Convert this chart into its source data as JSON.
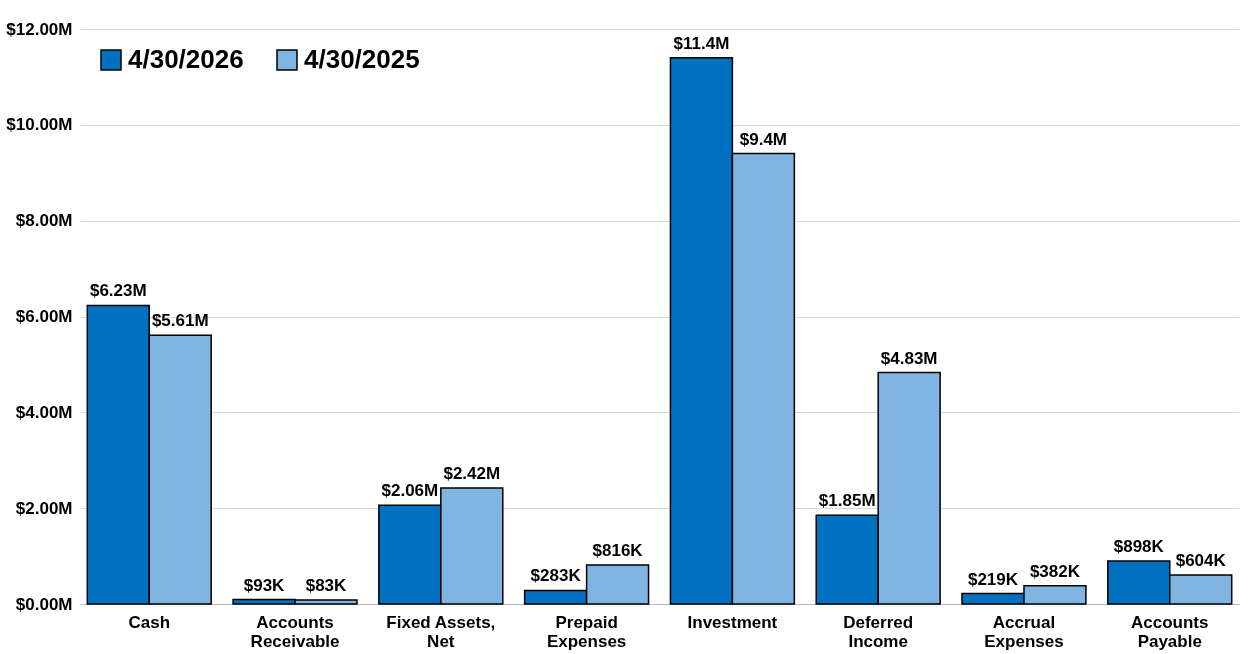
{
  "chart_data": {
    "type": "bar",
    "categories": [
      "Cash",
      "Accounts Receivable",
      "Fixed Assets, Net",
      "Prepaid Expenses",
      "Investment",
      "Deferred Income",
      "Accrual Expenses",
      "Accounts Payable"
    ],
    "series": [
      {
        "name": "4/30/2026",
        "color": "#0070c0",
        "values": [
          6230000,
          93000,
          2060000,
          283000,
          11400000,
          1850000,
          219000,
          898000
        ],
        "value_labels": [
          "$6.23M",
          "$93K",
          "$2.06M",
          "$283K",
          "$11.4M",
          "$1.85M",
          "$219K",
          "$898K"
        ]
      },
      {
        "name": "4/30/2025",
        "color": "#7fb5e0",
        "values": [
          5610000,
          83000,
          2420000,
          816000,
          9400000,
          4830000,
          382000,
          604000
        ],
        "value_labels": [
          "$5.61M",
          "$83K",
          "$2.42M",
          "$816K",
          "$9.4M",
          "$4.83M",
          "$382K",
          "$604K"
        ]
      }
    ],
    "ylim": [
      0,
      12000000
    ],
    "yticks": [
      {
        "value": 0,
        "label": "$0.00M"
      },
      {
        "value": 2000000,
        "label": "$2.00M"
      },
      {
        "value": 4000000,
        "label": "$4.00M"
      },
      {
        "value": 6000000,
        "label": "$6.00M"
      },
      {
        "value": 8000000,
        "label": "$8.00M"
      },
      {
        "value": 10000000,
        "label": "$10.00M"
      },
      {
        "value": 12000000,
        "label": "$12.00M"
      }
    ],
    "grid": "y",
    "legend": "top left"
  }
}
